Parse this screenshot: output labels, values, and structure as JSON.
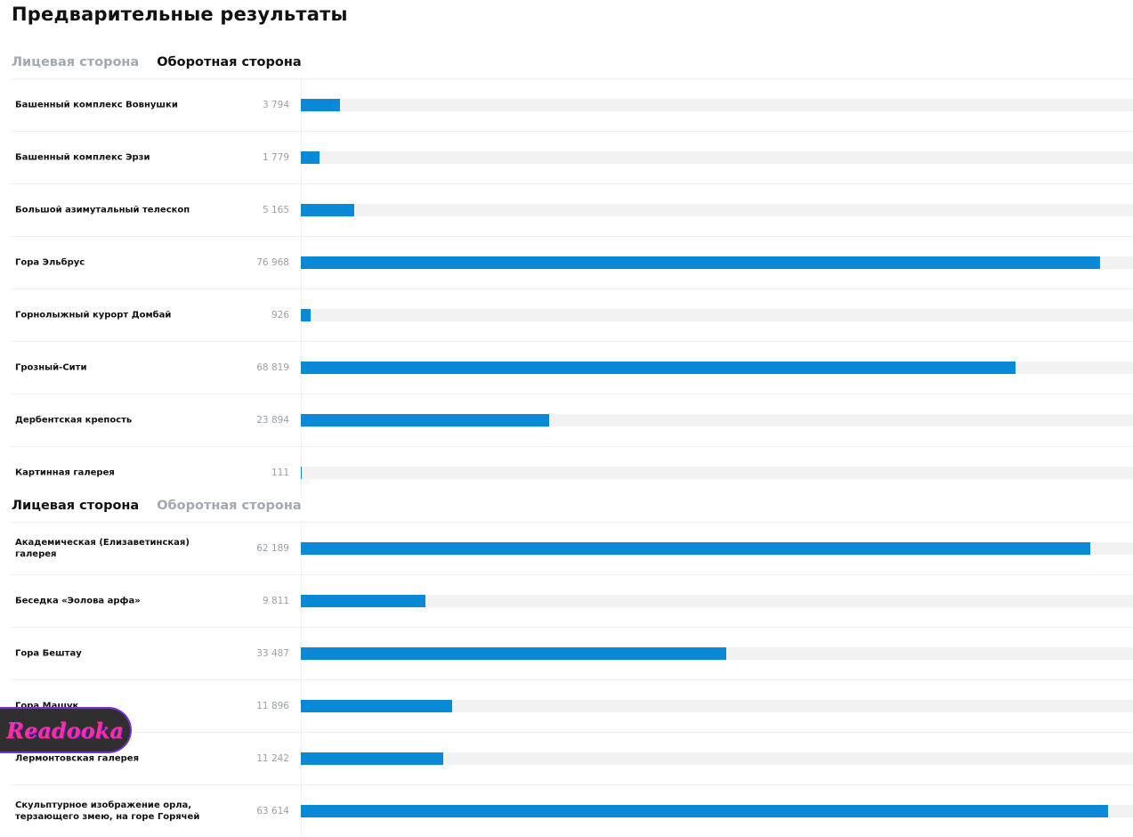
{
  "title": "Предварительные результаты",
  "colors": {
    "bar": "#0a8ad6",
    "track": "#f2f2f2",
    "inactive_tab": "#a3a9b0"
  },
  "sections": [
    {
      "tabs": [
        {
          "label": "Лицевая сторона",
          "active": false
        },
        {
          "label": "Оборотная сторона",
          "active": true
        }
      ],
      "rows": [
        {
          "label": "Башенный комплекс Вовнушки",
          "value": "3 794"
        },
        {
          "label": "Башенный комплекс Эрзи",
          "value": "1 779"
        },
        {
          "label": "Большой азимутальный телескоп",
          "value": "5 165"
        },
        {
          "label": "Гора Эльбрус",
          "value": "76 968"
        },
        {
          "label": "Горнолыжный курорт Домбай",
          "value": "926"
        },
        {
          "label": "Грозный-Сити",
          "value": "68 819"
        },
        {
          "label": "Дербентская крепость",
          "value": "23 894"
        },
        {
          "label": "Картинная галерея",
          "value": "111"
        }
      ]
    },
    {
      "tabs": [
        {
          "label": "Лицевая сторона",
          "active": true
        },
        {
          "label": "Оборотная сторона",
          "active": false
        }
      ],
      "rows": [
        {
          "label": "Академическая (Елизаветинская) галерея",
          "value": "62 189"
        },
        {
          "label": "Беседка «Эолова арфа»",
          "value": "9 811"
        },
        {
          "label": "Гора Бештау",
          "value": "33 487"
        },
        {
          "label": "Гора Машук",
          "value": "11 896"
        },
        {
          "label": "Лермонтовская галерея",
          "value": "11 242"
        },
        {
          "label": "Скульптурное изображение орла, терзающего змею, на горе Горячей",
          "value": "63 614"
        }
      ]
    }
  ],
  "watermark": {
    "text": "Readooka"
  }
}
